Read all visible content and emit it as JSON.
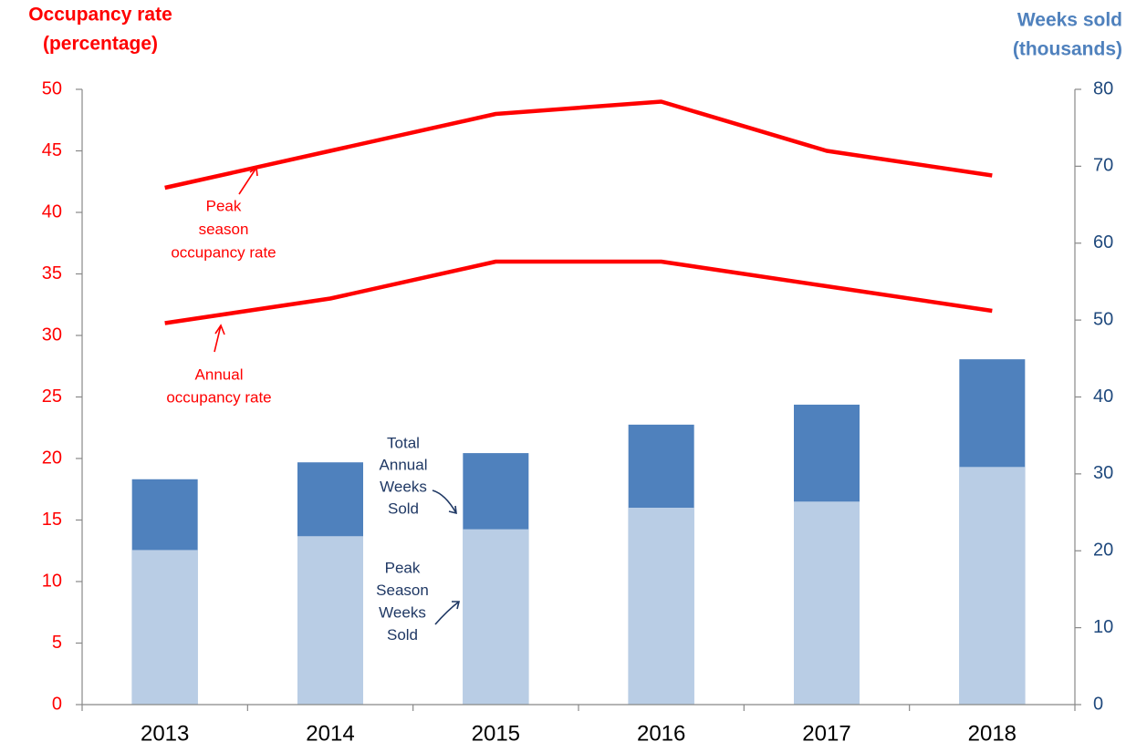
{
  "chart_data": {
    "type": "bar",
    "y_label": [
      "Occupancy rate",
      "(percentage)"
    ],
    "y2_label": [
      "Weeks sold",
      "(thousands)"
    ],
    "categories": [
      "2013",
      "2014",
      "2015",
      "2016",
      "2017",
      "2018"
    ],
    "ylim": [
      0,
      50
    ],
    "yticks": [
      0,
      5,
      10,
      15,
      20,
      25,
      30,
      35,
      40,
      45,
      50
    ],
    "y2lim": [
      0,
      80
    ],
    "y2ticks": [
      0,
      10,
      20,
      30,
      40,
      50,
      60,
      70,
      80
    ],
    "series": [
      {
        "name": "Total Annual Weeks Sold",
        "type": "bar",
        "axis": "y2",
        "color": "#4f81bd",
        "values": [
          29.3,
          31.5,
          32.7,
          36.4,
          39.0,
          44.9
        ]
      },
      {
        "name": "Peak Season Weeks Sold",
        "type": "bar",
        "axis": "y2",
        "color": "#b9cde5",
        "values": [
          20.1,
          21.9,
          22.8,
          25.6,
          26.4,
          30.9
        ]
      },
      {
        "name": "Peak season occupancy rate",
        "type": "line",
        "axis": "y",
        "color": "#ff0000",
        "values": [
          42,
          45,
          48,
          49,
          45,
          43
        ]
      },
      {
        "name": "Annual occupancy rate",
        "type": "line",
        "axis": "y",
        "color": "#ff0000",
        "values": [
          31,
          33,
          36,
          36,
          34,
          32
        ]
      }
    ],
    "annotations": [
      {
        "lines": [
          "Peak",
          "season",
          "occupancy rate"
        ],
        "color": "#ff0000"
      },
      {
        "lines": [
          "Annual",
          "occupancy rate"
        ],
        "color": "#ff0000"
      },
      {
        "lines": [
          "Total",
          "Annual",
          "Weeks",
          "Sold"
        ],
        "color": "#1f3864"
      },
      {
        "lines": [
          "Peak",
          "Season",
          "Weeks",
          "Sold"
        ],
        "color": "#1f3864"
      }
    ],
    "y_color": "#ff0000",
    "y2_color": "#1f497d",
    "y2_label_color": "#4f81bd"
  }
}
